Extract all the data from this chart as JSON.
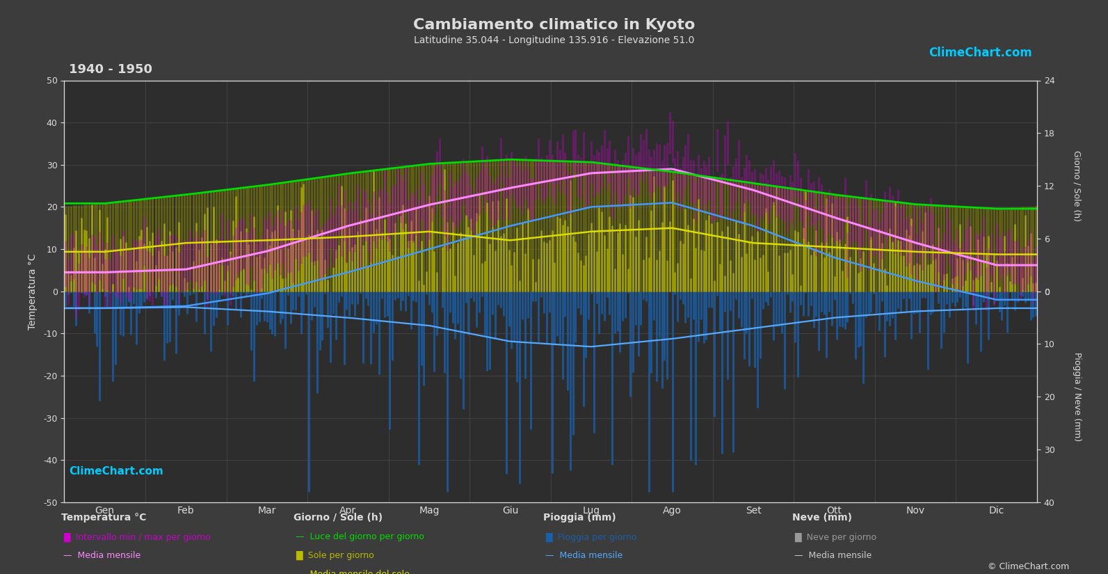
{
  "title": "Cambiamento climatico in Kyoto",
  "subtitle": "Latitudine 35.044 - Longitudine 135.916 - Elevazione 51.0",
  "period": "1940 - 1950",
  "bg_color": "#3c3c3c",
  "plot_bg_color": "#2d2d2d",
  "months": [
    "Gen",
    "Feb",
    "Mar",
    "Apr",
    "Mag",
    "Giu",
    "Lug",
    "Ago",
    "Set",
    "Ott",
    "Nov",
    "Dic"
  ],
  "days_per_month": [
    31,
    28,
    31,
    30,
    31,
    30,
    31,
    31,
    30,
    31,
    30,
    31
  ],
  "temp_ylim": [
    -50,
    50
  ],
  "temp_yticks": [
    -50,
    -40,
    -30,
    -20,
    -10,
    0,
    10,
    20,
    30,
    40,
    50
  ],
  "sun_yticks_vals": [
    0,
    6,
    12,
    18,
    24
  ],
  "rain_yticks_vals": [
    0,
    10,
    20,
    30,
    40
  ],
  "temp_mean_monthly": [
    4.5,
    5.2,
    9.5,
    15.5,
    20.5,
    24.5,
    28.0,
    29.0,
    24.0,
    17.5,
    11.5,
    6.2
  ],
  "temp_min_env_monthly": [
    -1.0,
    -0.5,
    4.0,
    10.0,
    15.5,
    20.0,
    23.5,
    24.5,
    19.0,
    12.5,
    6.0,
    1.5
  ],
  "temp_max_env_monthly": [
    10.5,
    11.5,
    16.5,
    22.0,
    26.5,
    30.0,
    33.5,
    34.5,
    29.5,
    23.0,
    17.5,
    11.5
  ],
  "temp_min_line_monthly": [
    -4.0,
    -3.5,
    -0.5,
    4.5,
    10.0,
    15.5,
    20.0,
    21.0,
    15.5,
    8.0,
    2.5,
    -2.0
  ],
  "sun_hours_monthly": [
    4.5,
    5.5,
    5.8,
    6.2,
    6.8,
    5.8,
    6.8,
    7.2,
    5.5,
    5.0,
    4.5,
    4.2
  ],
  "daylight_hours_monthly": [
    10.0,
    11.0,
    12.1,
    13.4,
    14.5,
    15.0,
    14.7,
    13.6,
    12.3,
    11.0,
    9.9,
    9.4
  ],
  "rain_daily_mean_monthly": [
    3.2,
    3.0,
    3.8,
    5.0,
    6.5,
    9.5,
    10.5,
    9.0,
    7.0,
    5.0,
    3.8,
    3.2
  ],
  "grid_color": "#4a4a4a",
  "text_color": "#dddddd",
  "brand_color": "#00ccff"
}
